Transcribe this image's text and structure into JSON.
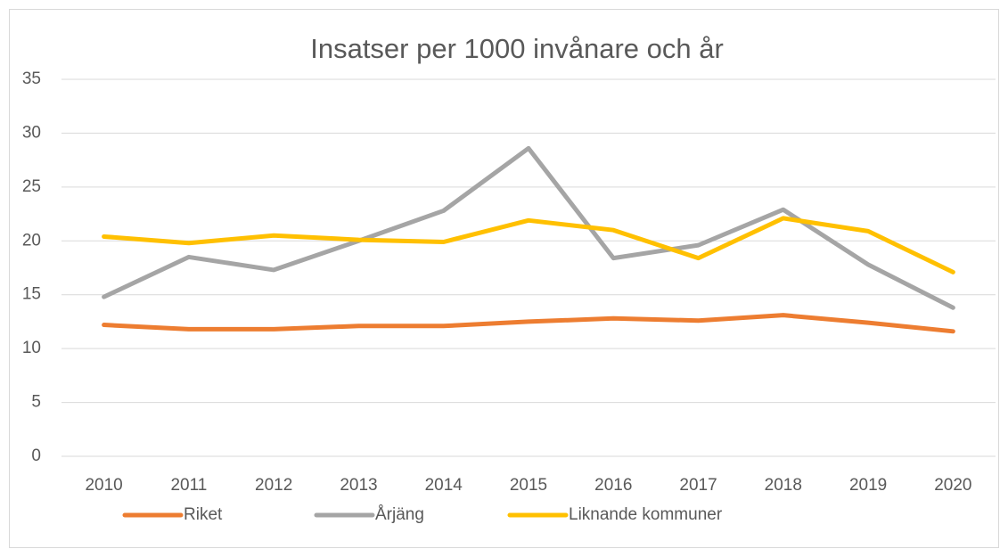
{
  "chart_data": {
    "type": "line",
    "title": "Insatser per 1000 invånare och år",
    "categories": [
      "2010",
      "2011",
      "2012",
      "2013",
      "2014",
      "2015",
      "2016",
      "2017",
      "2018",
      "2019",
      "2020"
    ],
    "series": [
      {
        "name": "Riket",
        "color": "#ed7d31",
        "values": [
          12.2,
          11.8,
          11.8,
          12.1,
          12.1,
          12.5,
          12.8,
          12.6,
          13.1,
          12.4,
          11.6
        ]
      },
      {
        "name": "Årjäng",
        "color": "#a5a5a5",
        "values": [
          14.8,
          18.5,
          17.3,
          20.0,
          22.8,
          28.6,
          18.4,
          19.6,
          22.9,
          17.8,
          13.8
        ]
      },
      {
        "name": "Liknande kommuner",
        "color": "#ffc000",
        "values": [
          20.4,
          19.8,
          20.5,
          20.1,
          19.9,
          21.9,
          21.0,
          18.4,
          22.1,
          20.9,
          17.1
        ]
      }
    ],
    "ylim": [
      0,
      35
    ],
    "yticks": [
      0,
      5,
      10,
      15,
      20,
      25,
      30,
      35
    ],
    "grid": true,
    "legend": "bottom"
  }
}
